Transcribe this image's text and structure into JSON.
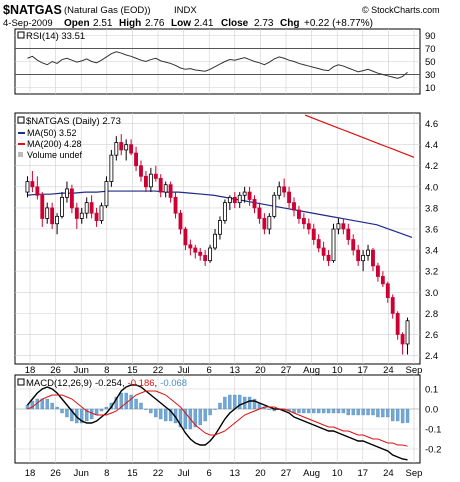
{
  "header": {
    "symbol": "$NATGAS",
    "name": "(Natural Gas (EOD))",
    "exchange": "INDX",
    "watermark": "© StockCharts.com",
    "date": "4-Sep-2009",
    "open_label": "Open",
    "open": "2.51",
    "high_label": "High",
    "high": "2.76",
    "low_label": "Low",
    "low": "2.41",
    "close_label": "Close",
    "close": "2.73",
    "chg_label": "Chg",
    "chg": "+0.22 (+8.77%)"
  },
  "colors": {
    "up": "#000000",
    "down": "#cc0033",
    "ma50": "#1f2a8a",
    "ma200": "#dd1111",
    "rsi": "#333333",
    "macd": "#000000",
    "signal": "#dd1111",
    "histogram": "#6fa8d6",
    "grid": "#d0d0d0"
  },
  "rsi_panel": {
    "label": "RSI(14) 33.51",
    "ticks": [
      "90",
      "70",
      "50",
      "30",
      "10"
    ]
  },
  "price_panel": {
    "legend": {
      "main": "$NATGAS (Daily) 2.73",
      "ma50": "MA(50) 3.52",
      "ma200": "MA(200) 4.28",
      "volume": "Volume undef"
    },
    "ticks": [
      "4.6",
      "4.4",
      "4.2",
      "4.0",
      "3.8",
      "3.6",
      "3.4",
      "3.2",
      "3.0",
      "2.8",
      "2.6",
      "2.4"
    ]
  },
  "macd_panel": {
    "label_prefix": "MACD(12,26,9)",
    "macd_value": "-0.254",
    "signal_value": "-0.186",
    "hist_value": "-0.068",
    "sep1": ",",
    "sep2": ",",
    "ticks": [
      "0.1",
      "0.0",
      "-0.1",
      "-0.2"
    ]
  },
  "x_axis_labels": [
    "18",
    "26",
    "Jun",
    "8",
    "15",
    "22",
    "Jul",
    "6",
    "13",
    "20",
    "27",
    "Aug",
    "10",
    "17",
    "24",
    "Sep"
  ],
  "chart_data": {
    "type": "candlestick",
    "symbol": "$NATGAS",
    "period": "Daily",
    "x_labels": [
      "18",
      "26",
      "Jun",
      "8",
      "15",
      "22",
      "Jul",
      "6",
      "13",
      "20",
      "27",
      "Aug",
      "10",
      "17",
      "24",
      "Sep"
    ],
    "y_range": [
      2.32,
      4.7
    ],
    "ohlc": [
      [
        3.95,
        4.1,
        3.9,
        4.05
      ],
      [
        4.05,
        4.15,
        3.95,
        4.0
      ],
      [
        4.0,
        4.1,
        3.88,
        3.92
      ],
      [
        3.92,
        3.95,
        3.62,
        3.7
      ],
      [
        3.7,
        3.85,
        3.65,
        3.8
      ],
      [
        3.8,
        3.85,
        3.6,
        3.65
      ],
      [
        3.65,
        3.75,
        3.55,
        3.72
      ],
      [
        3.72,
        3.95,
        3.7,
        3.9
      ],
      [
        3.9,
        4.05,
        3.85,
        3.98
      ],
      [
        3.98,
        4.02,
        3.75,
        3.8
      ],
      [
        3.8,
        3.85,
        3.6,
        3.7
      ],
      [
        3.7,
        3.8,
        3.65,
        3.75
      ],
      [
        3.75,
        3.9,
        3.7,
        3.85
      ],
      [
        3.85,
        3.92,
        3.7,
        3.75
      ],
      [
        3.75,
        3.8,
        3.62,
        3.68
      ],
      [
        3.68,
        3.85,
        3.65,
        3.82
      ],
      [
        3.82,
        4.1,
        3.8,
        4.05
      ],
      [
        4.05,
        4.35,
        4.0,
        4.3
      ],
      [
        4.3,
        4.48,
        4.25,
        4.42
      ],
      [
        4.42,
        4.5,
        4.3,
        4.35
      ],
      [
        4.35,
        4.45,
        4.25,
        4.4
      ],
      [
        4.4,
        4.45,
        4.3,
        4.32
      ],
      [
        4.32,
        4.38,
        4.15,
        4.2
      ],
      [
        4.2,
        4.25,
        4.05,
        4.1
      ],
      [
        4.1,
        4.15,
        3.95,
        4.0
      ],
      [
        4.0,
        4.18,
        3.95,
        4.12
      ],
      [
        4.12,
        4.2,
        4.05,
        4.08
      ],
      [
        4.08,
        4.12,
        3.9,
        3.95
      ],
      [
        3.95,
        4.05,
        3.9,
        4.02
      ],
      [
        4.02,
        4.05,
        3.85,
        3.9
      ],
      [
        3.9,
        3.95,
        3.7,
        3.75
      ],
      [
        3.75,
        3.78,
        3.55,
        3.6
      ],
      [
        3.6,
        3.62,
        3.4,
        3.45
      ],
      [
        3.45,
        3.5,
        3.35,
        3.42
      ],
      [
        3.42,
        3.45,
        3.32,
        3.38
      ],
      [
        3.38,
        3.42,
        3.3,
        3.35
      ],
      [
        3.35,
        3.4,
        3.25,
        3.3
      ],
      [
        3.3,
        3.45,
        3.28,
        3.42
      ],
      [
        3.42,
        3.6,
        3.4,
        3.55
      ],
      [
        3.55,
        3.72,
        3.5,
        3.68
      ],
      [
        3.68,
        3.88,
        3.65,
        3.85
      ],
      [
        3.85,
        3.92,
        3.78,
        3.9
      ],
      [
        3.9,
        3.95,
        3.8,
        3.85
      ],
      [
        3.85,
        3.95,
        3.8,
        3.92
      ],
      [
        3.92,
        4.0,
        3.85,
        3.95
      ],
      [
        3.95,
        4.0,
        3.82,
        3.88
      ],
      [
        3.88,
        3.92,
        3.75,
        3.8
      ],
      [
        3.8,
        3.85,
        3.65,
        3.7
      ],
      [
        3.7,
        3.75,
        3.55,
        3.6
      ],
      [
        3.6,
        3.75,
        3.55,
        3.72
      ],
      [
        3.72,
        3.95,
        3.7,
        3.92
      ],
      [
        3.92,
        4.05,
        3.88,
        4.0
      ],
      [
        4.0,
        4.08,
        3.9,
        3.95
      ],
      [
        3.95,
        4.0,
        3.8,
        3.85
      ],
      [
        3.85,
        3.9,
        3.72,
        3.78
      ],
      [
        3.78,
        3.82,
        3.65,
        3.7
      ],
      [
        3.7,
        3.75,
        3.6,
        3.65
      ],
      [
        3.65,
        3.7,
        3.55,
        3.6
      ],
      [
        3.6,
        3.65,
        3.45,
        3.5
      ],
      [
        3.5,
        3.55,
        3.38,
        3.42
      ],
      [
        3.42,
        3.48,
        3.3,
        3.35
      ],
      [
        3.35,
        3.4,
        3.25,
        3.3
      ],
      [
        3.3,
        3.65,
        3.28,
        3.6
      ],
      [
        3.6,
        3.7,
        3.55,
        3.65
      ],
      [
        3.65,
        3.7,
        3.55,
        3.6
      ],
      [
        3.6,
        3.65,
        3.45,
        3.5
      ],
      [
        3.5,
        3.55,
        3.35,
        3.4
      ],
      [
        3.4,
        3.45,
        3.25,
        3.3
      ],
      [
        3.3,
        3.4,
        3.2,
        3.35
      ],
      [
        3.35,
        3.45,
        3.3,
        3.4
      ],
      [
        3.4,
        3.42,
        3.2,
        3.25
      ],
      [
        3.25,
        3.28,
        3.1,
        3.15
      ],
      [
        3.15,
        3.2,
        3.05,
        3.08
      ],
      [
        3.08,
        3.1,
        2.9,
        2.95
      ],
      [
        2.95,
        2.98,
        2.75,
        2.8
      ],
      [
        2.8,
        2.82,
        2.55,
        2.6
      ],
      [
        2.6,
        2.62,
        2.41,
        2.51
      ],
      [
        2.51,
        2.76,
        2.41,
        2.73
      ]
    ],
    "ma50": [
      3.92,
      3.93,
      3.93,
      3.94,
      3.94,
      3.95,
      3.95,
      3.96,
      3.96,
      3.96,
      3.96,
      3.96,
      3.95,
      3.95,
      3.94,
      3.93,
      3.92,
      3.9,
      3.88,
      3.86,
      3.84,
      3.82,
      3.8,
      3.78,
      3.76,
      3.74,
      3.72,
      3.7,
      3.68,
      3.66,
      3.64,
      3.6,
      3.56,
      3.52
    ],
    "ma200": [
      4.68,
      4.66,
      4.64,
      4.62,
      4.6,
      4.58,
      4.56,
      4.54,
      4.52,
      4.5,
      4.48,
      4.46,
      4.44,
      4.42,
      4.4,
      4.38,
      4.36,
      4.34,
      4.32,
      4.3,
      4.28
    ],
    "rsi": {
      "value": 33.51,
      "ylim": [
        0,
        100
      ],
      "ticks": [
        90,
        70,
        50,
        30,
        10
      ],
      "series": [
        55,
        58,
        52,
        48,
        45,
        50,
        47,
        53,
        55,
        52,
        49,
        51,
        54,
        50,
        48,
        52,
        57,
        62,
        65,
        63,
        60,
        58,
        55,
        52,
        50,
        53,
        55,
        51,
        49,
        47,
        44,
        40,
        38,
        39,
        37,
        36,
        35,
        38,
        42,
        46,
        50,
        53,
        52,
        54,
        56,
        53,
        50,
        48,
        45,
        49,
        54,
        57,
        55,
        52,
        50,
        47,
        45,
        43,
        41,
        39,
        37,
        36,
        42,
        45,
        43,
        40,
        37,
        34,
        36,
        38,
        35,
        32,
        30,
        28,
        26,
        24,
        27,
        33.5
      ]
    },
    "macd": {
      "macd_value": -0.254,
      "signal_value": -0.186,
      "hist_value": -0.068,
      "ylim": [
        -0.27,
        0.17
      ],
      "ticks": [
        0.1,
        0.0,
        -0.1,
        -0.2
      ],
      "macd": [
        0.02,
        0.05,
        0.08,
        0.1,
        0.11,
        0.1,
        0.08,
        0.05,
        0.02,
        -0.01,
        -0.04,
        -0.06,
        -0.07,
        -0.07,
        -0.06,
        -0.04,
        -0.02,
        0.01,
        0.05,
        0.09,
        0.11,
        0.12,
        0.12,
        0.11,
        0.09,
        0.07,
        0.05,
        0.03,
        0.01,
        -0.01,
        -0.04,
        -0.08,
        -0.12,
        -0.15,
        -0.17,
        -0.18,
        -0.18,
        -0.16,
        -0.13,
        -0.09,
        -0.05,
        -0.02,
        0.0,
        0.02,
        0.03,
        0.04,
        0.04,
        0.03,
        0.02,
        0.01,
        0.0,
        0.0,
        -0.01,
        -0.02,
        -0.04,
        -0.05,
        -0.06,
        -0.07,
        -0.08,
        -0.09,
        -0.1,
        -0.11,
        -0.11,
        -0.12,
        -0.13,
        -0.14,
        -0.15,
        -0.16,
        -0.16,
        -0.17,
        -0.18,
        -0.19,
        -0.2,
        -0.21,
        -0.23,
        -0.24,
        -0.25,
        -0.254
      ],
      "signal": [
        0.0,
        0.01,
        0.03,
        0.05,
        0.06,
        0.07,
        0.07,
        0.07,
        0.06,
        0.05,
        0.03,
        0.01,
        -0.01,
        -0.02,
        -0.03,
        -0.03,
        -0.03,
        -0.02,
        -0.01,
        0.01,
        0.03,
        0.05,
        0.07,
        0.08,
        0.09,
        0.09,
        0.09,
        0.08,
        0.07,
        0.05,
        0.03,
        0.01,
        -0.02,
        -0.05,
        -0.08,
        -0.1,
        -0.12,
        -0.13,
        -0.13,
        -0.12,
        -0.11,
        -0.09,
        -0.07,
        -0.05,
        -0.03,
        -0.02,
        -0.01,
        0.0,
        0.01,
        0.01,
        0.01,
        0.0,
        0.0,
        -0.01,
        -0.02,
        -0.03,
        -0.04,
        -0.05,
        -0.06,
        -0.07,
        -0.08,
        -0.09,
        -0.09,
        -0.1,
        -0.11,
        -0.11,
        -0.12,
        -0.13,
        -0.13,
        -0.14,
        -0.15,
        -0.15,
        -0.16,
        -0.17,
        -0.17,
        -0.18,
        -0.18,
        -0.186
      ]
    }
  }
}
